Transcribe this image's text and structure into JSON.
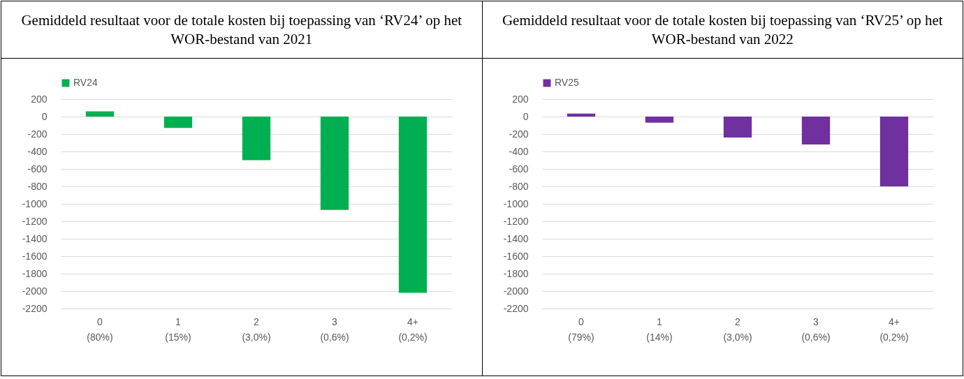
{
  "chart_data": [
    {
      "type": "bar",
      "title": "Gemiddeld resultaat voor de totale kosten bij toepassing van ‘RV24’ op het WOR-bestand van 2021",
      "categories": [
        "0\n(80%)",
        "1\n(15%)",
        "2\n(3,0%)",
        "3\n(0,6%)",
        "4+\n(0,2%)"
      ],
      "series": [
        {
          "name": "RV24",
          "color": "#00b050",
          "values": [
            60,
            -130,
            -500,
            -1070,
            -2020
          ]
        }
      ],
      "ylim": [
        -2200,
        200
      ],
      "yticks": [
        200,
        0,
        -200,
        -400,
        -600,
        -800,
        -1000,
        -1200,
        -1400,
        -1600,
        -1800,
        -2000,
        -2200
      ],
      "grid": "y",
      "legend": "top"
    },
    {
      "type": "bar",
      "title": "Gemiddeld resultaat voor de totale kosten bij toepassing van ‘RV25’ op het WOR-bestand van 2022",
      "categories": [
        "0\n(79%)",
        "1\n(14%)",
        "2\n(3,0%)",
        "3\n(0,6%)",
        "4+\n(0,2%)"
      ],
      "series": [
        {
          "name": "RV25",
          "color": "#7030a0",
          "values": [
            35,
            -70,
            -240,
            -320,
            -800
          ]
        }
      ],
      "ylim": [
        -2200,
        200
      ],
      "yticks": [
        200,
        0,
        -200,
        -400,
        -600,
        -800,
        -1000,
        -1200,
        -1400,
        -1600,
        -1800,
        -2000,
        -2200
      ],
      "grid": "y",
      "legend": "top"
    }
  ]
}
